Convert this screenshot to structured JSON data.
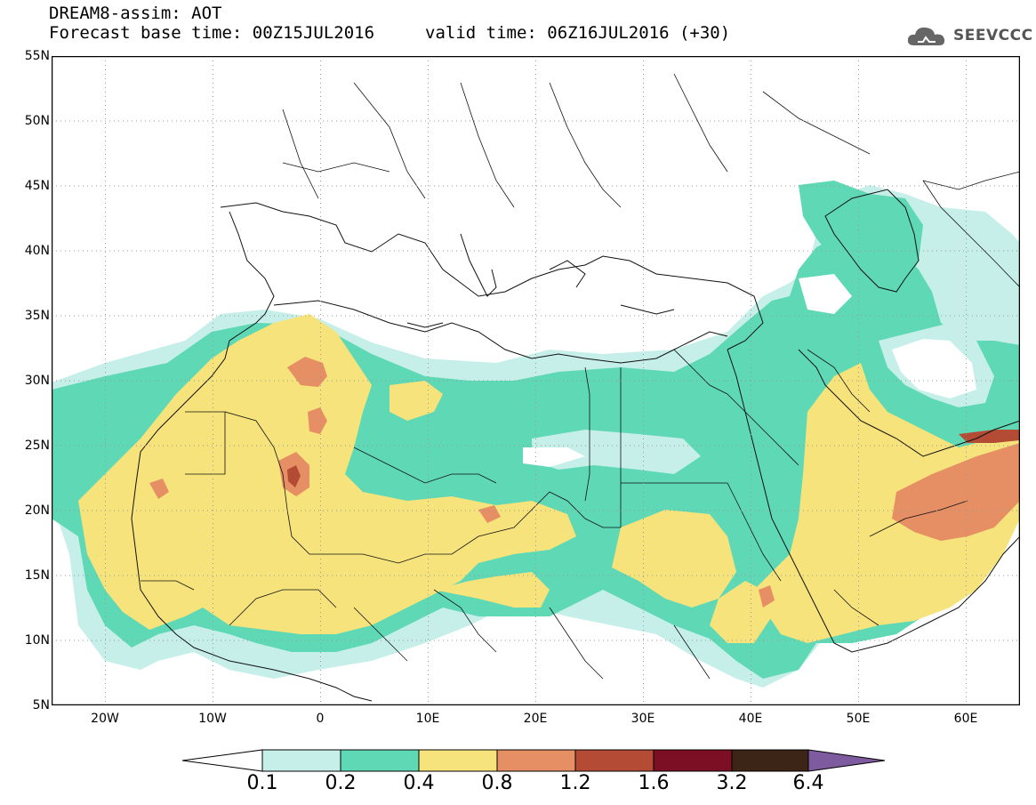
{
  "header": {
    "line1": "DREAM8-assim: AOT",
    "line2": "Forecast base time: 00Z15JUL2016",
    "line3": "valid time: 06Z16JUL2016 (+30)"
  },
  "logo": {
    "text": "SEEVCCC",
    "icon": "cloud-icon"
  },
  "axes": {
    "lat_labels": [
      "55N",
      "50N",
      "45N",
      "40N",
      "35N",
      "30N",
      "25N",
      "20N",
      "15N",
      "10N",
      "5N"
    ],
    "lon_labels": [
      "20W",
      "10W",
      "0",
      "10E",
      "20E",
      "30E",
      "40E",
      "50E",
      "60E"
    ],
    "lat_range": [
      5,
      55
    ],
    "lon_range": [
      -25,
      65
    ],
    "grid": "dotted"
  },
  "colorbar": {
    "levels": [
      "0.1",
      "0.2",
      "0.4",
      "0.8",
      "1.2",
      "1.6",
      "3.2",
      "6.4"
    ],
    "colors": [
      "#c6efe9",
      "#5ed8b5",
      "#f7e37b",
      "#e68f64",
      "#b34b35",
      "#7d0f24",
      "#3c2416",
      "#7e5b9e"
    ],
    "under_color": "#ffffff"
  },
  "legend_colors": {
    "aot_01_02": "#c6efe9",
    "aot_02_04": "#5ed8b5",
    "aot_04_08": "#f7e37b",
    "aot_08_12": "#e68f64",
    "aot_12_16": "#b34b35"
  }
}
